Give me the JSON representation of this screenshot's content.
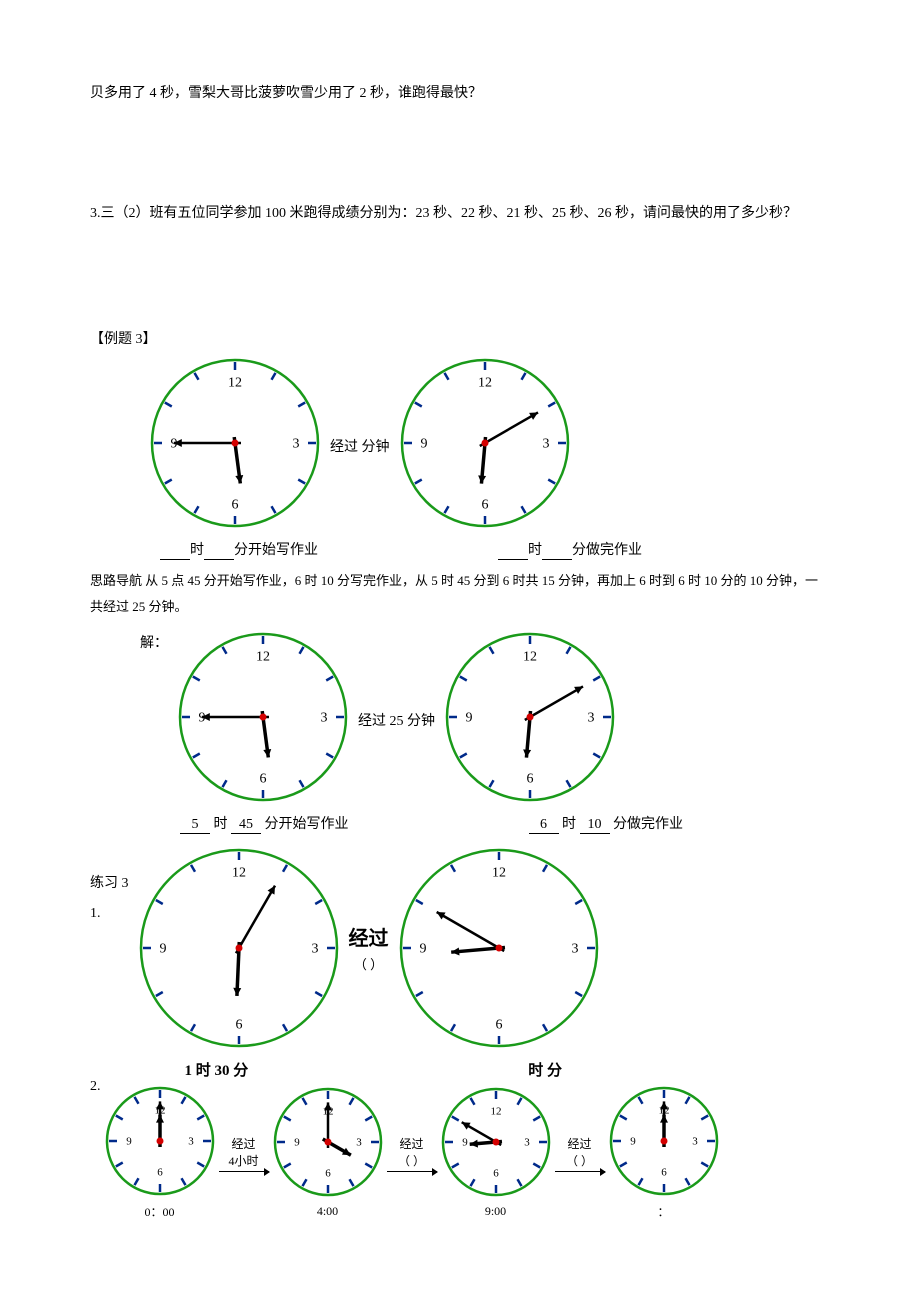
{
  "text": {
    "p1": "贝多用了 4 秒，雪梨大哥比菠萝吹雪少用了 2 秒，谁跑得最快？",
    "p2": "3.三（2）班有五位同学参加 100 米跑得成绩分别为：23 秒、22 秒、21 秒、25 秒、26 秒，请问最快的用了多少秒？",
    "exampleLabel": "【例题 3】",
    "startLabelBlank": "时",
    "startLabelBlank2": "分开始写作业",
    "endLabelBlank": "时",
    "endLabelBlank2": "分做完作业",
    "elapsedBlank": "经过      分钟",
    "guide": "思路导航 从 5 点 45 分开始写作业，6 时 10 分写完作业，从 5 时 45 分到 6 时共 15 分钟，再加上 6 时到 6 时 10 分的 10 分钟，一共经过 25 分钟。",
    "solutionLabel": "解：",
    "elapsed25": "经过 25 分钟",
    "start5": "5",
    "start45": "45",
    "startTxt": "时",
    "startTxt2": "分开始写作业",
    "end6": "6",
    "end10": "10",
    "endTxt": "时",
    "endTxt2": "分做完作业",
    "prac3": "练习 3",
    "prac1": "1.",
    "prac2": "2.",
    "elapsedParen": "经过",
    "parenBlank": "（      ）",
    "h1m30": "1 时 30 分",
    "hmBlank": "时  分",
    "t0": "0：00",
    "t4": "4:00",
    "t9": "9:00",
    "tColon": "：",
    "pass4h": "经过",
    "pass4h2": "4小时"
  },
  "clock_style": {
    "rim_color": "#1a9a1a",
    "tick_color": "#002a8a",
    "hand_color": "#000000",
    "center_dot": "#d40000",
    "numeral_fontsize_big": 14,
    "numeral_fontsize_small": 11
  },
  "clocks": {
    "c_5_45_big": {
      "r": 85,
      "hour": 5,
      "min": 45
    },
    "c_6_10_big": {
      "r": 85,
      "hour": 6,
      "min": 10
    },
    "c_5_45_b2": {
      "r": 85,
      "hour": 5,
      "min": 45
    },
    "c_6_10_b2": {
      "r": 85,
      "hour": 6,
      "min": 10
    },
    "c_6_05": {
      "r": 100,
      "hour": 6,
      "min": 5
    },
    "c_9_05": {
      "r": 100,
      "hour": 8,
      "min": 50
    },
    "s_12_00": {
      "r": 55,
      "hour": 12,
      "min": 0,
      "small": true
    },
    "s_04_00": {
      "r": 55,
      "hour": 4,
      "min": 0,
      "small": true
    },
    "s_09_00": {
      "r": 55,
      "hour": 8,
      "min": 50,
      "small": true
    },
    "s_12_00b": {
      "r": 55,
      "hour": 12,
      "min": 0,
      "small": true
    }
  }
}
